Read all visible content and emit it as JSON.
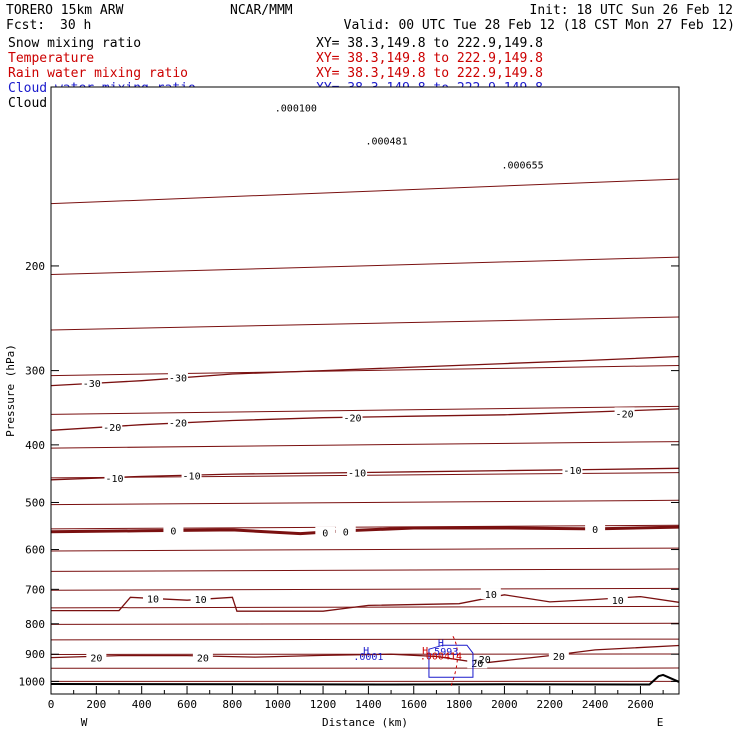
{
  "header": {
    "model": "TORERO  15km ARW",
    "center": "NCAR/MMM",
    "init": "Init: 18 UTC Sun 26 Feb 12",
    "fcst_label": "Fcst:",
    "fcst_value": "30 h",
    "valid": "Valid: 00 UTC Tue 28 Feb 12 (18 CST Mon 27 Feb 12)"
  },
  "fields": [
    {
      "name": "Snow mixing ratio",
      "xy": "XY=  38.3,149.8 to 222.9,149.8",
      "color": "#000000"
    },
    {
      "name": "Temperature",
      "xy": "XY=  38.3,149.8 to 222.9,149.8",
      "color": "#cc0000"
    },
    {
      "name": "Rain water mixing ratio",
      "xy": "XY=  38.3,149.8 to 222.9,149.8",
      "color": "#cc0000"
    },
    {
      "name": "Cloud water mixing ratio",
      "xy": "XY=  38.3,149.8 to 222.9,149.8",
      "color": "#1a1acc"
    },
    {
      "name": "Cloud ice mixing ratio",
      "xy": "XY=  38.3,149.8 to 222.9,149.8",
      "color": "#000000"
    }
  ],
  "chart_data": {
    "type": "line",
    "subtype": "vertical cross-section contour",
    "xlabel": "Distance (km)",
    "ylabel": "Pressure (hPa)",
    "xlim": [
      0,
      2770
    ],
    "ylim": [
      1050,
      100
    ],
    "y_scale": "log",
    "x_ticks": [
      0,
      200,
      400,
      600,
      800,
      1000,
      1200,
      1400,
      1600,
      1800,
      2000,
      2200,
      2400,
      2600
    ],
    "y_ticks": [
      200,
      300,
      400,
      500,
      600,
      700,
      800,
      900,
      1000
    ],
    "x_end_labels": {
      "left": "W",
      "right": "E"
    },
    "temperature_contours": [
      {
        "value": -30,
        "label": "-30",
        "points": [
          [
            0,
            318
          ],
          [
            400,
            312
          ],
          [
            800,
            304
          ],
          [
            1200,
            300
          ],
          [
            1600,
            296
          ],
          [
            2000,
            292
          ],
          [
            2400,
            288
          ],
          [
            2770,
            284
          ]
        ],
        "label_at": [
          [
            180,
            315
          ],
          [
            560,
            308
          ]
        ]
      },
      {
        "value": -20,
        "label": "-20",
        "points": [
          [
            0,
            378
          ],
          [
            400,
            370
          ],
          [
            800,
            364
          ],
          [
            1200,
            360
          ],
          [
            1600,
            358
          ],
          [
            2000,
            356
          ],
          [
            2400,
            352
          ],
          [
            2770,
            348
          ]
        ],
        "label_at": [
          [
            270,
            373
          ],
          [
            560,
            367
          ],
          [
            1330,
            360
          ],
          [
            2530,
            354
          ]
        ]
      },
      {
        "value": -10,
        "label": "-10",
        "points": [
          [
            0,
            458
          ],
          [
            400,
            452
          ],
          [
            800,
            448
          ],
          [
            1200,
            446
          ],
          [
            1600,
            444
          ],
          [
            2000,
            442
          ],
          [
            2400,
            440
          ],
          [
            2770,
            438
          ]
        ],
        "label_at": [
          [
            280,
            455
          ],
          [
            620,
            450
          ],
          [
            1350,
            445
          ],
          [
            2300,
            441
          ]
        ]
      },
      {
        "value": 0,
        "label": "0",
        "points": [
          [
            0,
            560
          ],
          [
            400,
            558
          ],
          [
            800,
            556
          ],
          [
            1100,
            564
          ],
          [
            1300,
            558
          ],
          [
            1600,
            552
          ],
          [
            2000,
            552
          ],
          [
            2400,
            554
          ],
          [
            2770,
            550
          ]
        ],
        "label_at": [
          [
            540,
            557
          ],
          [
            1210,
            562
          ],
          [
            1300,
            560
          ],
          [
            2400,
            554
          ]
        ]
      },
      {
        "value": 10,
        "label": "10",
        "points": [
          [
            0,
            760
          ],
          [
            300,
            760
          ],
          [
            350,
            722
          ],
          [
            600,
            730
          ],
          [
            800,
            722
          ],
          [
            820,
            762
          ],
          [
            1200,
            762
          ],
          [
            1400,
            745
          ],
          [
            1800,
            740
          ],
          [
            2000,
            715
          ],
          [
            2200,
            735
          ],
          [
            2400,
            728
          ],
          [
            2600,
            720
          ],
          [
            2770,
            736
          ]
        ],
        "label_at": [
          [
            450,
            725
          ],
          [
            660,
            727
          ],
          [
            1940,
            713
          ],
          [
            2500,
            730
          ]
        ]
      },
      {
        "value": 20,
        "label": "20",
        "points": [
          [
            0,
            912
          ],
          [
            300,
            905
          ],
          [
            600,
            905
          ],
          [
            900,
            910
          ],
          [
            1200,
            904
          ],
          [
            1500,
            900
          ],
          [
            1700,
            908
          ],
          [
            1900,
            932
          ],
          [
            2200,
            905
          ],
          [
            2400,
            885
          ],
          [
            2770,
            870
          ]
        ],
        "label_at": [
          [
            200,
            912
          ],
          [
            670,
            912
          ],
          [
            1880,
            932
          ],
          [
            2240,
            906
          ]
        ]
      }
    ],
    "isobar_like_lines_note": "Additional unlabeled contour lines span the panel at roughly every 50 hPa",
    "surface_line": [
      [
        0,
        1010
      ],
      [
        1500,
        1012
      ],
      [
        2000,
        1011
      ],
      [
        2640,
        1012
      ],
      [
        2680,
        980
      ],
      [
        2700,
        975
      ],
      [
        2770,
        1002
      ]
    ],
    "annotations": [
      {
        "text": ".000100",
        "x": 1080,
        "y": 110,
        "color": "#000000"
      },
      {
        "text": ".000655",
        "x": 2080,
        "y": 137,
        "color": "#000000"
      },
      {
        "text": ".000481",
        "x": 1480,
        "y": 125,
        "color": "#000000"
      },
      {
        "text": "H",
        "x": 1390,
        "y": 900,
        "color": "#1a1acc"
      },
      {
        "text": ".0001",
        "x": 1400,
        "y": 920,
        "color": "#1a1acc"
      },
      {
        "text": "H",
        "x": 1720,
        "y": 873,
        "color": "#1a1acc"
      },
      {
        "text": "H",
        "x": 1650,
        "y": 900,
        "color": "#cc0000"
      },
      {
        "text": ".5993",
        "x": 1730,
        "y": 902,
        "color": "#1a1acc"
      },
      {
        "text": ".000414",
        "x": 1720,
        "y": 918,
        "color": "#cc0000"
      },
      {
        "text": "-20",
        "x": 1900,
        "y": 932,
        "color": "#000000"
      }
    ]
  }
}
